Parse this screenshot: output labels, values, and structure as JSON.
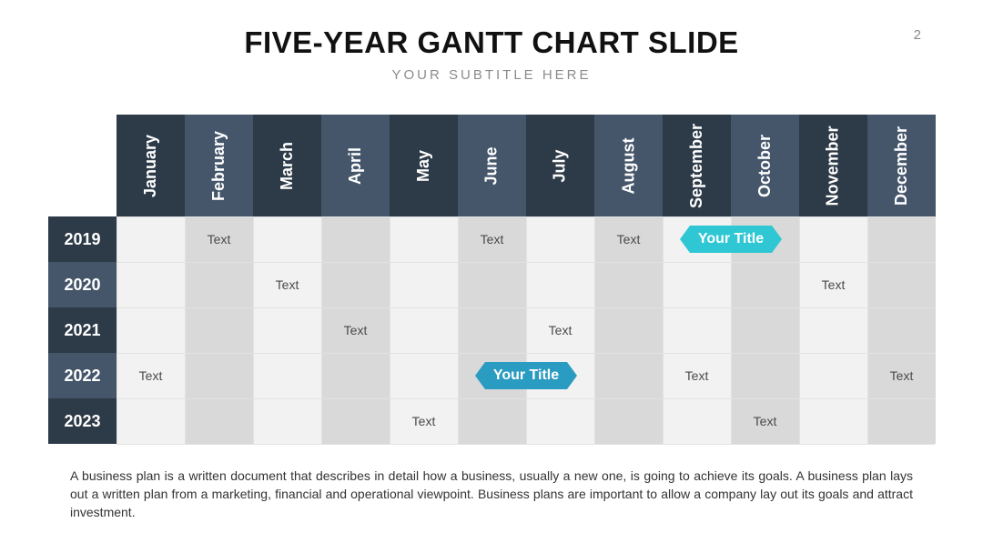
{
  "slide": {
    "page_number": "2",
    "title": "FIVE-YEAR GANTT CHART SLIDE",
    "subtitle": "YOUR SUBTITLE HERE",
    "description": "A business plan is a written document that describes in detail how a business, usually a new one, is going to achieve its goals. A business plan lays out a written plan from a marketing, financial and operational viewpoint. Business plans are important to allow a company lay out its goals and attract investment."
  },
  "gantt": {
    "months": [
      "January",
      "February",
      "March",
      "April",
      "May",
      "June",
      "July",
      "August",
      "September",
      "October",
      "November",
      "December"
    ],
    "years": [
      "2019",
      "2020",
      "2021",
      "2022",
      "2023"
    ],
    "cell_texts": [
      {
        "year": "2019",
        "month": "February",
        "text": "Text"
      },
      {
        "year": "2019",
        "month": "June",
        "text": "Text"
      },
      {
        "year": "2019",
        "month": "August",
        "text": "Text"
      },
      {
        "year": "2020",
        "month": "March",
        "text": "Text"
      },
      {
        "year": "2020",
        "month": "November",
        "text": "Text"
      },
      {
        "year": "2021",
        "month": "April",
        "text": "Text"
      },
      {
        "year": "2021",
        "month": "July",
        "text": "Text"
      },
      {
        "year": "2022",
        "month": "January",
        "text": "Text"
      },
      {
        "year": "2022",
        "month": "September",
        "text": "Text"
      },
      {
        "year": "2022",
        "month": "December",
        "text": "Text"
      },
      {
        "year": "2023",
        "month": "May",
        "text": "Text"
      },
      {
        "year": "2023",
        "month": "October",
        "text": "Text"
      }
    ],
    "milestones": [
      {
        "year": "2019",
        "label": "Your Title",
        "start_month": "September",
        "end_month": "October",
        "color": "#2ec7d3"
      },
      {
        "year": "2022",
        "label": "Your Title",
        "start_month": "June",
        "end_month": "July",
        "color": "#2a9bc1"
      }
    ],
    "colors": {
      "header_dark": "#2d3a47",
      "header_light": "#45566b",
      "column_light": "#f2f2f2",
      "column_gray": "#d9d9d9"
    }
  }
}
